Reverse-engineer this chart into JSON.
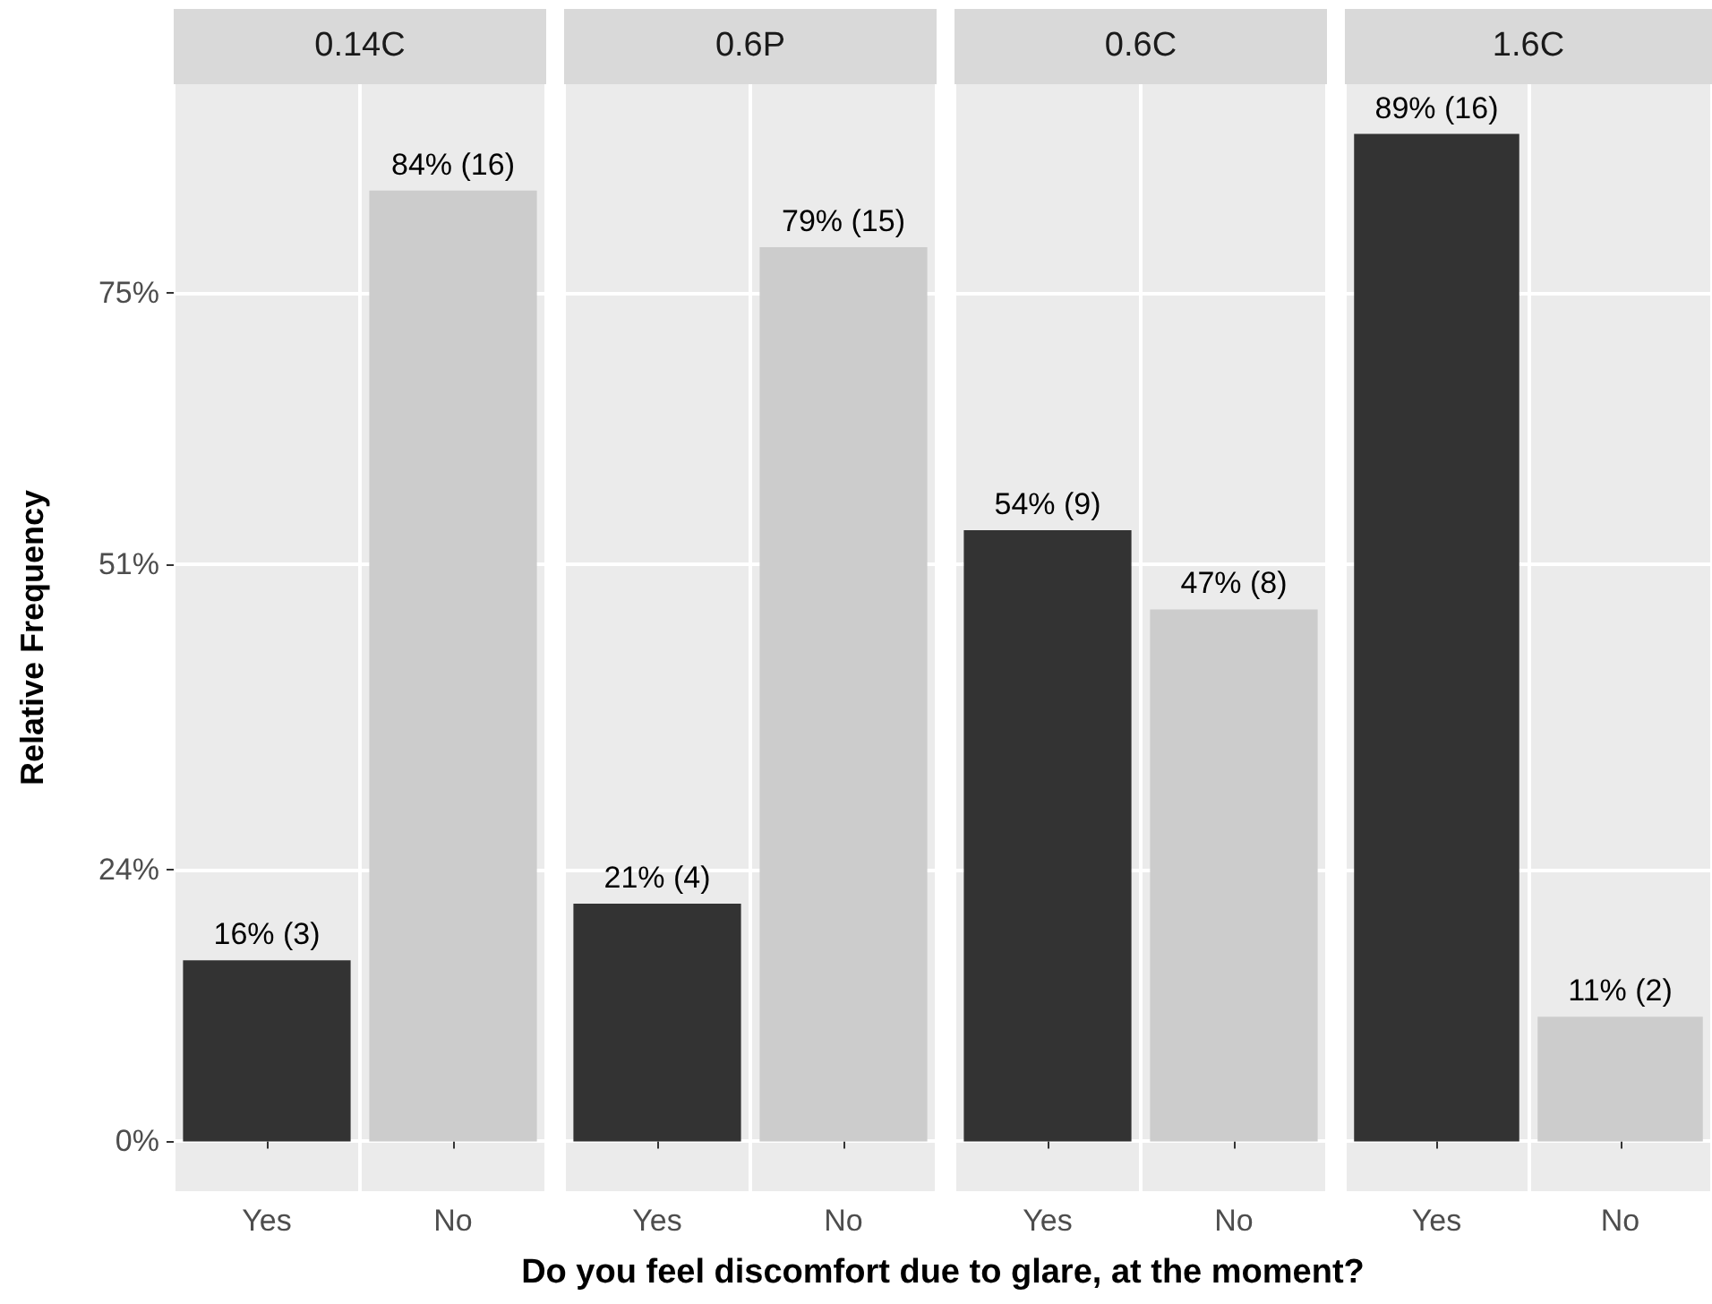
{
  "chart_data": [
    {
      "type": "bar",
      "title": "0.14C",
      "ylabel": "Relative Frequency",
      "xlabel": "Do you feel discomfort due to glare, at the moment?",
      "categories": [
        "Yes",
        "No"
      ],
      "values": [
        16,
        84
      ],
      "colors": [
        "#333333",
        "#cccccc"
      ],
      "value_labels": [
        "16% (3)",
        "84% (16)"
      ],
      "ylim": [
        -4.4,
        93.4
      ],
      "yticks": [
        {
          "value": 0,
          "label": "0%"
        },
        {
          "value": 24,
          "label": "24%"
        },
        {
          "value": 51,
          "label": "51%"
        },
        {
          "value": 75,
          "label": "75%"
        }
      ],
      "grid": true
    },
    {
      "type": "bar",
      "title": "0.6P",
      "categories": [
        "Yes",
        "No"
      ],
      "values": [
        21,
        79
      ],
      "colors": [
        "#333333",
        "#cccccc"
      ],
      "value_labels": [
        "21% (4)",
        "79% (15)"
      ],
      "ylim": [
        -4.4,
        93.4
      ],
      "yticks": [
        0,
        24,
        51,
        75
      ],
      "grid": true,
      "tick_labels": "x"
    },
    {
      "type": "bar",
      "title": "0.6C",
      "categories": [
        "Yes",
        "No"
      ],
      "values": [
        54,
        47
      ],
      "colors": [
        "#333333",
        "#cccccc"
      ],
      "value_labels": [
        "54% (9)",
        "47% (8)"
      ],
      "ylim": [
        -4.4,
        93.4
      ],
      "yticks": [
        0,
        24,
        51,
        75
      ],
      "grid": true,
      "tick_labels": "x"
    },
    {
      "type": "bar",
      "title": "1.6C",
      "categories": [
        "Yes",
        "No"
      ],
      "values": [
        89,
        11
      ],
      "colors": [
        "#333333",
        "#cccccc"
      ],
      "value_labels": [
        "89% (16)",
        "11% (2)"
      ],
      "ylim": [
        -4.4,
        93.4
      ],
      "yticks": [
        0,
        24,
        51,
        75
      ],
      "grid": true,
      "tick_labels": "x"
    }
  ]
}
